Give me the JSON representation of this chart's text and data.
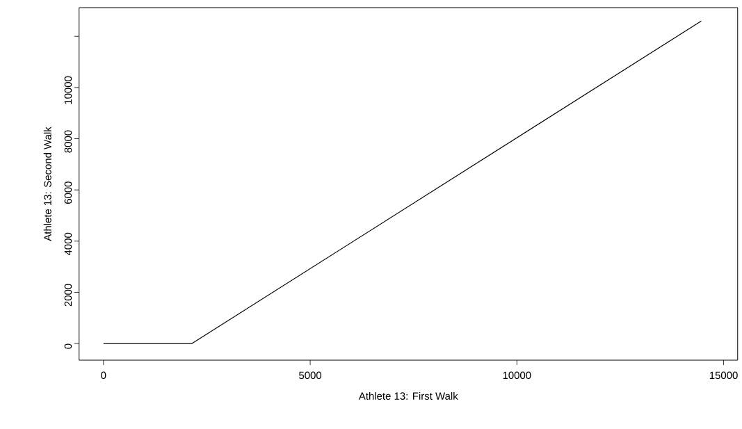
{
  "chart_data": {
    "type": "line",
    "xlabel": "Athlete 13: First Walk",
    "ylabel": "Athlete 13: Second Walk",
    "x": [
      0,
      2140,
      14460
    ],
    "series": [
      {
        "color": "#000000",
        "values": [
          0,
          0,
          12600
        ]
      }
    ],
    "xlim": [
      -590,
      15340
    ],
    "ylim": [
      -650,
      13120
    ],
    "xticks": [
      0,
      5000,
      10000,
      15000
    ],
    "yticks": [
      0,
      2000,
      4000,
      6000,
      8000,
      10000,
      {
        "value": 12000,
        "label": null
      }
    ],
    "grid": false,
    "legend": false,
    "marker": "none",
    "line_style": "solid"
  }
}
